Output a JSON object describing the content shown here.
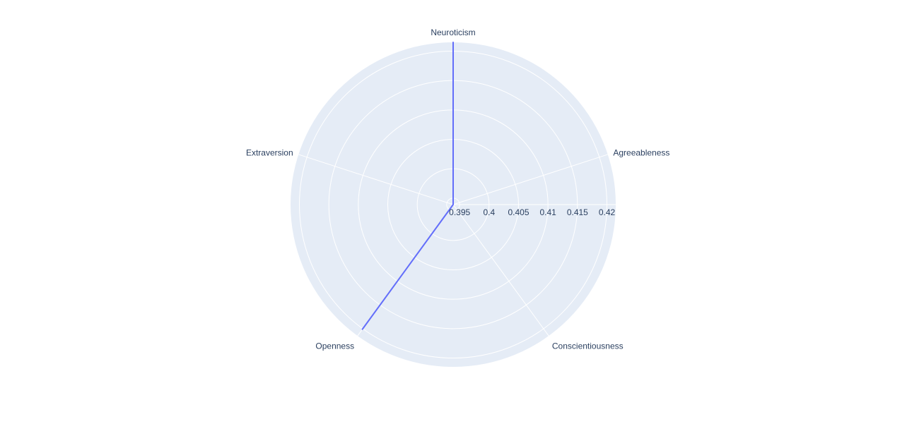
{
  "chart_data": {
    "type": "polar-line",
    "title": "",
    "theta_categories": [
      "Agreeableness",
      "Conscientiousness",
      "Openness",
      "Extraversion",
      "Neuroticism"
    ],
    "series": [
      {
        "values": [
          0.3939,
          0.3939,
          0.4201,
          0.3939,
          0.4215
        ],
        "color": "#636efa"
      }
    ],
    "radial_range": [
      0.3939,
      0.4215
    ],
    "radial_ticks": [
      0.395,
      0.4,
      0.405,
      0.41,
      0.415,
      0.42
    ],
    "radial_tick_labels": [
      "0.395",
      "0.4",
      "0.405",
      "0.41",
      "0.415",
      "0.42"
    ],
    "grid": true,
    "legend": "none",
    "colors": {
      "polar_bg": "#e5ecf6",
      "grid": "#ffffff",
      "line": "#636efa",
      "text": "#2a3f5f"
    }
  }
}
